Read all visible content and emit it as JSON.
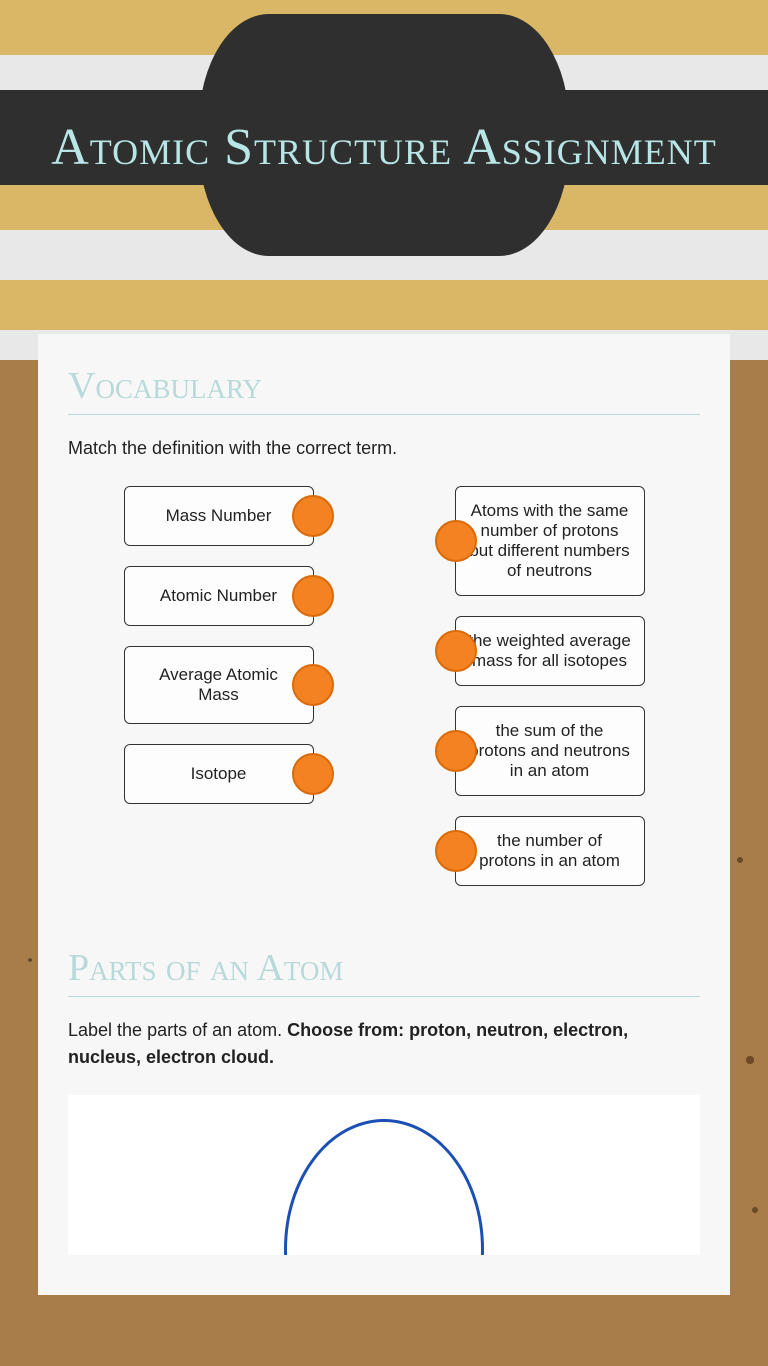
{
  "page_title": "Atomic Structure Assignment",
  "colors": {
    "gold": "#d9b766",
    "grey_stripe": "#e8e8e8",
    "dark": "#2f2f2f",
    "brown": "#a87d4a",
    "card_bg": "#f7f7f7",
    "title_light_blue": "#b8e6e6",
    "section_blue": "#b8d9d9",
    "dot_fill": "#f58220",
    "dot_border": "#d96b0a",
    "orbit_blue": "#1a4fb3"
  },
  "section1": {
    "title": "Vocabulary",
    "instruction": "Match the definition with the correct term.",
    "left_terms": [
      "Mass Number",
      "Atomic Number",
      "Average Atomic Mass",
      "Isotope"
    ],
    "right_defs": [
      "Atoms with the same number of protons but different numbers of neutrons",
      "the weighted average mass for all isotopes",
      "the sum of the protons and neutrons in an atom",
      "the number of protons in an atom"
    ]
  },
  "section2": {
    "title": "Parts of an Atom",
    "instruction_plain": "Label the parts of an atom. ",
    "instruction_bold": "Choose from: proton, neutron, electron, nucleus, electron cloud."
  }
}
